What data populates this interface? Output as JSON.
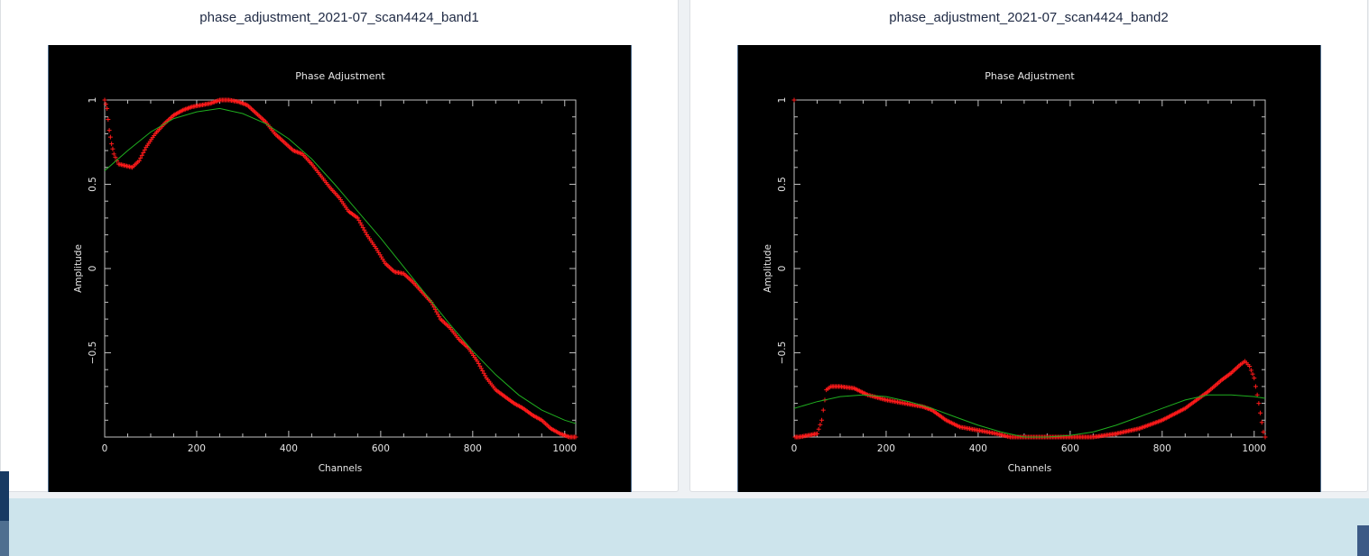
{
  "panels": [
    {
      "title": "phase_adjustment_2021-07_scan4424_band1"
    },
    {
      "title": "phase_adjustment_2021-07_scan4424_band2"
    }
  ],
  "colors": {
    "background": "#000000",
    "axes": "#bfbfbf",
    "data_points": "#ff1a1a",
    "fit_curve": "#1fae1f"
  },
  "chart_data": [
    {
      "type": "scatter",
      "title": "Phase Adjustment",
      "xlabel": "Channels",
      "ylabel": "Amplitude",
      "xlim": [
        0,
        1024
      ],
      "ylim": [
        -1,
        1
      ],
      "xticks": [
        0,
        200,
        400,
        600,
        800,
        1000
      ],
      "xtick_labels": [
        "0",
        "200",
        "400",
        "600",
        "800",
        "1000"
      ],
      "yticks": [
        1,
        0.5,
        0,
        -0.5
      ],
      "ytick_labels": [
        "1",
        "0.5",
        "0",
        "−0.5"
      ],
      "series": [
        {
          "kind": "points",
          "x": [
            0,
            5,
            10,
            15,
            20,
            30,
            45,
            60,
            75,
            90,
            110,
            130,
            150,
            170,
            190,
            210,
            230,
            250,
            270,
            290,
            310,
            330,
            350,
            370,
            390,
            410,
            430,
            450,
            470,
            490,
            510,
            530,
            550,
            570,
            590,
            610,
            630,
            650,
            670,
            690,
            710,
            730,
            750,
            770,
            790,
            810,
            830,
            850,
            870,
            890,
            910,
            930,
            950,
            970,
            990,
            1010,
            1024
          ],
          "y": [
            1.0,
            0.95,
            0.82,
            0.74,
            0.68,
            0.62,
            0.61,
            0.6,
            0.64,
            0.72,
            0.8,
            0.86,
            0.91,
            0.94,
            0.96,
            0.97,
            0.98,
            1.0,
            1.0,
            0.99,
            0.97,
            0.92,
            0.87,
            0.8,
            0.75,
            0.7,
            0.68,
            0.62,
            0.55,
            0.48,
            0.42,
            0.34,
            0.3,
            0.2,
            0.12,
            0.03,
            -0.02,
            -0.03,
            -0.08,
            -0.14,
            -0.2,
            -0.3,
            -0.35,
            -0.42,
            -0.47,
            -0.55,
            -0.65,
            -0.72,
            -0.76,
            -0.8,
            -0.83,
            -0.87,
            -0.9,
            -0.95,
            -0.98,
            -1.0,
            -1.0
          ]
        },
        {
          "kind": "line",
          "x": [
            0,
            50,
            100,
            150,
            200,
            250,
            300,
            350,
            400,
            450,
            500,
            550,
            600,
            650,
            700,
            750,
            800,
            850,
            900,
            950,
            1000,
            1024
          ],
          "y": [
            0.58,
            0.7,
            0.81,
            0.89,
            0.93,
            0.95,
            0.92,
            0.86,
            0.77,
            0.65,
            0.5,
            0.34,
            0.18,
            0.01,
            -0.16,
            -0.33,
            -0.49,
            -0.63,
            -0.75,
            -0.84,
            -0.9,
            -0.92
          ]
        }
      ]
    },
    {
      "type": "scatter",
      "title": "Phase Adjustment",
      "xlabel": "Channels",
      "ylabel": "Amplitude",
      "xlim": [
        0,
        1024
      ],
      "ylim": [
        -1,
        1
      ],
      "xticks": [
        0,
        200,
        400,
        600,
        800,
        1000
      ],
      "xtick_labels": [
        "0",
        "200",
        "400",
        "600",
        "800",
        "1000"
      ],
      "yticks": [
        1,
        0.5,
        0,
        -0.5
      ],
      "ytick_labels": [
        "1",
        "0.5",
        "0",
        "−0.5"
      ],
      "series": [
        {
          "kind": "points",
          "x": [
            0,
            2,
            10,
            30,
            50,
            60,
            70,
            80,
            100,
            130,
            160,
            200,
            240,
            280,
            300,
            330,
            360,
            400,
            440,
            470,
            500,
            550,
            600,
            650,
            700,
            750,
            800,
            850,
            900,
            930,
            950,
            970,
            980,
            990,
            1000,
            1010,
            1020,
            1024
          ],
          "y": [
            1.0,
            -1.0,
            -1.0,
            -0.99,
            -0.98,
            -0.9,
            -0.72,
            -0.7,
            -0.7,
            -0.71,
            -0.75,
            -0.78,
            -0.8,
            -0.82,
            -0.84,
            -0.9,
            -0.94,
            -0.96,
            -0.98,
            -1.0,
            -1.0,
            -1.0,
            -1.0,
            -1.0,
            -0.98,
            -0.95,
            -0.9,
            -0.83,
            -0.73,
            -0.66,
            -0.62,
            -0.57,
            -0.55,
            -0.58,
            -0.65,
            -0.8,
            -0.97,
            -1.0
          ]
        },
        {
          "kind": "line",
          "x": [
            0,
            50,
            100,
            150,
            200,
            250,
            300,
            350,
            400,
            450,
            500,
            550,
            600,
            650,
            700,
            750,
            800,
            850,
            900,
            950,
            1000,
            1024
          ],
          "y": [
            -0.83,
            -0.79,
            -0.76,
            -0.75,
            -0.76,
            -0.79,
            -0.83,
            -0.88,
            -0.93,
            -0.97,
            -1.0,
            -1.0,
            -0.99,
            -0.97,
            -0.93,
            -0.88,
            -0.83,
            -0.78,
            -0.75,
            -0.75,
            -0.76,
            -0.77
          ]
        }
      ]
    }
  ]
}
